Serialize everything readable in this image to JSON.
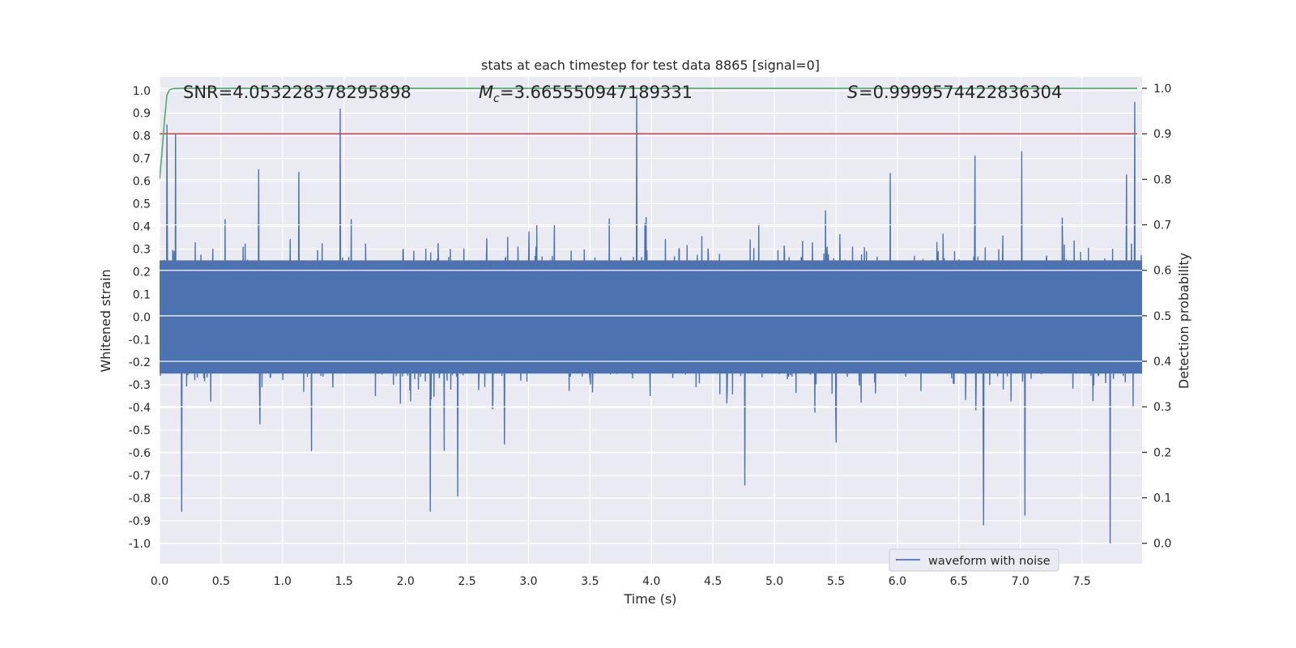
{
  "chart_data": {
    "type": "line",
    "title": "stats at each timestep for test data 8865 [signal=0]",
    "xlabel": "Time (s)",
    "ylabel": "Whitened strain",
    "y2label": "Detection probability",
    "xlim": [
      0.0,
      7.99
    ],
    "ylim": [
      -1.09,
      1.06
    ],
    "y2lim": [
      -0.045,
      1.025
    ],
    "x_ticks": [
      "0.0",
      "0.5",
      "1.0",
      "1.5",
      "2.0",
      "2.5",
      "3.0",
      "3.5",
      "4.0",
      "4.5",
      "5.0",
      "5.5",
      "6.0",
      "6.5",
      "7.0",
      "7.5"
    ],
    "y_ticks": [
      "1.0",
      "0.9",
      "0.8",
      "0.7",
      "0.6",
      "0.5",
      "0.4",
      "0.3",
      "0.2",
      "0.1",
      "0.0",
      "-0.1",
      "-0.2",
      "-0.3",
      "-0.4",
      "-0.5",
      "-0.6",
      "-0.7",
      "-0.8",
      "-0.9",
      "-1.0"
    ],
    "y_tick_values": [
      1.0,
      0.9,
      0.8,
      0.7,
      0.6,
      0.5,
      0.4,
      0.3,
      0.2,
      0.1,
      0.0,
      -0.1,
      -0.2,
      -0.3,
      -0.4,
      -0.5,
      -0.6,
      -0.7,
      -0.8,
      -0.9,
      -1.0
    ],
    "y2_ticks": [
      "1.0",
      "0.9",
      "0.8",
      "0.7",
      "0.6",
      "0.5",
      "0.4",
      "0.3",
      "0.2",
      "0.1",
      "0.0"
    ],
    "y2_tick_values": [
      1.0,
      0.9,
      0.8,
      0.7,
      0.6,
      0.5,
      0.4,
      0.3,
      0.2,
      0.1,
      0.0
    ],
    "grid": true,
    "legend_position": "lower-right",
    "annotations": {
      "snr": "SNR=4.053228378295898",
      "mc": "=3.665550947189331",
      "s": "=0.9999574422836304"
    },
    "series": [
      {
        "name": "waveform with noise",
        "axis": "left",
        "color": "#4c72b0",
        "kind": "noise",
        "x_range": [
          0.0,
          7.99
        ],
        "y_range": [
          -1.0,
          0.98
        ],
        "notable_peaks": [
          [
            0.06,
            0.85
          ],
          [
            0.13,
            0.81
          ],
          [
            1.47,
            0.92
          ],
          [
            3.88,
            0.98
          ],
          [
            7.93,
            0.95
          ]
        ],
        "notable_troughs": [
          [
            0.18,
            -0.86
          ],
          [
            2.2,
            -0.86
          ],
          [
            6.7,
            -0.92
          ],
          [
            7.73,
            -1.0
          ]
        ]
      },
      {
        "axis": "right",
        "color": "#55a868",
        "x": [
          0.0,
          0.02,
          0.04,
          0.06,
          0.08,
          0.1,
          0.14,
          0.2,
          7.95
        ],
        "values": [
          0.8,
          0.86,
          0.93,
          0.985,
          0.996,
          0.999,
          0.9998,
          1.0,
          1.0
        ]
      },
      {
        "axis": "right",
        "color": "#c44e52",
        "x": [
          0.0,
          7.95
        ],
        "values": [
          0.9,
          0.9
        ]
      }
    ]
  }
}
